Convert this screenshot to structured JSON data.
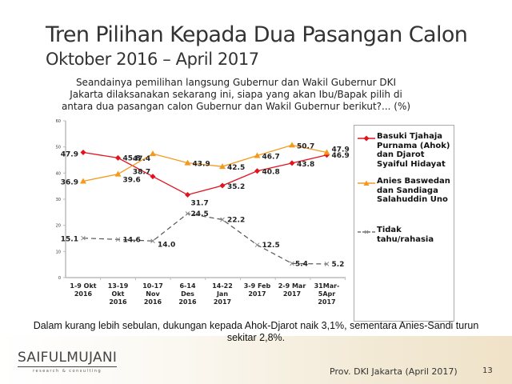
{
  "title": "Tren Pilihan Kepada Dua Pasangan Calon",
  "subtitle": "Oktober 2016 – April 2017",
  "question": "Seandainya pemilihan langsung Gubernur dan Wakil Gubernur DKI Jakarta dilaksanakan sekarang ini, siapa yang akan Ibu/Bapak pilih di antara dua pasangan calon Gubernur dan Wakil Gubernur berikut?... (%)",
  "summary": "Dalam kurang lebih sebulan, dukungan kepada Ahok-Djarot naik 3,1%, sementara Anies-Sandi turun sekitar 2,8%.",
  "logo": {
    "main": "SAIFULMUJANI",
    "sub": "research & consulting"
  },
  "footer": {
    "source": "Prov. DKI Jakarta (April 2017)",
    "page": "13"
  },
  "colors": {
    "ahok": "#e0141e",
    "anies": "#f39a1e",
    "tidak": "#555555"
  },
  "legend": [
    {
      "label": "Basuki Tjahaja Purnama (Ahok) dan Djarot Syaiful Hidayat"
    },
    {
      "label": "Anies Baswedan dan Sandiaga Salahuddin Uno"
    },
    {
      "label": "Tidak tahu/rahasia"
    }
  ],
  "chart_data": {
    "type": "line",
    "title": "Tren Pilihan Kepada Dua Pasangan Calon",
    "xlabel": "",
    "ylabel": "%",
    "ylim": [
      0,
      60
    ],
    "yticks": [
      0,
      10,
      20,
      30,
      40,
      50,
      60
    ],
    "grid": false,
    "legend_position": "right",
    "categories": [
      [
        "1-9 Okt",
        "2016"
      ],
      [
        "13-19",
        "Okt",
        "2016"
      ],
      [
        "10-17",
        "Nov",
        "2016"
      ],
      [
        "6-14",
        "Des",
        "2016"
      ],
      [
        "14-22",
        "Jan",
        "2017"
      ],
      [
        "3-9 Feb",
        "2017"
      ],
      [
        "2-9 Mar",
        "2017"
      ],
      [
        "31Mar-",
        "5Apr",
        "2017"
      ]
    ],
    "series": [
      {
        "name": "Basuki Tjahaja Purnama (Ahok) dan Djarot Syaiful Hidayat",
        "values": [
          47.9,
          45.8,
          38.7,
          31.7,
          35.2,
          40.8,
          43.8,
          46.9
        ]
      },
      {
        "name": "Anies Baswedan dan Sandiaga Salahuddin Uno",
        "values": [
          36.9,
          39.6,
          47.4,
          43.9,
          42.5,
          46.7,
          50.7,
          47.9
        ]
      },
      {
        "name": "Tidak tahu/rahasia",
        "values": [
          15.1,
          14.6,
          14.0,
          24.5,
          22.2,
          12.5,
          5.4,
          5.2
        ]
      }
    ]
  }
}
